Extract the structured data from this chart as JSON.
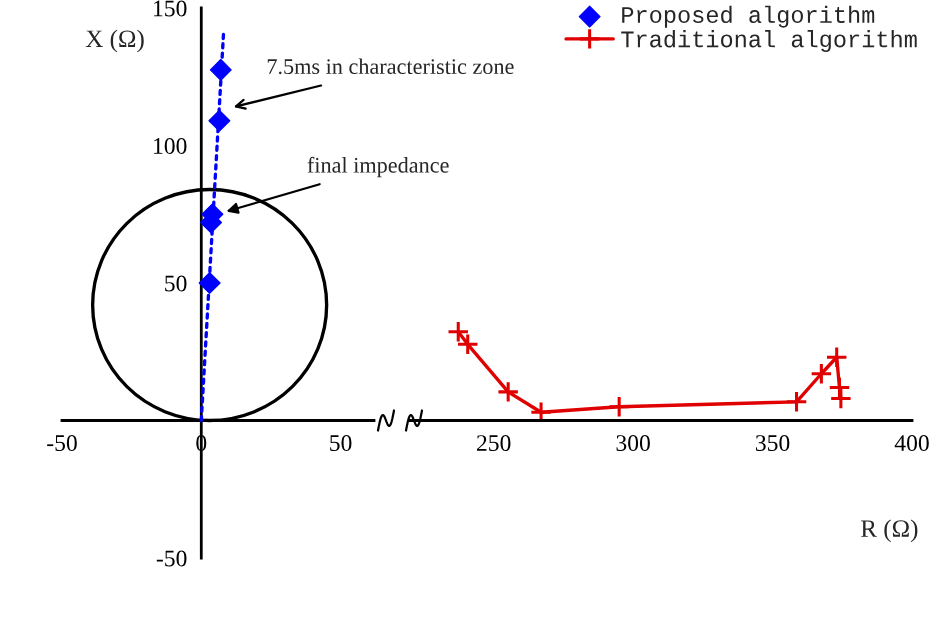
{
  "chart_data": [
    {
      "type": "scatter",
      "ylabel": "X (Ω)",
      "xlim": [
        -50,
        62
      ],
      "ylim": [
        -50,
        150
      ],
      "xticks": [
        -50,
        0,
        50
      ],
      "yticks": [
        -50,
        50,
        100,
        150
      ],
      "tick_labels": "xy",
      "annotations": [
        "7.5ms in characteristic zone",
        {
          "text": "final impedance",
          "x": 9,
          "y": 76
        }
      ],
      "series": [
        {
          "type": "line",
          "color": "#0000ff",
          "marker": "none",
          "line_style": "dotted",
          "x": [
            0,
            8
          ],
          "values": [
            0,
            141
          ]
        },
        {
          "type": "scatter",
          "name": "Proposed algorithm",
          "color": "#0000ff",
          "marker": "diamond",
          "x": [
            3,
            3.5,
            4,
            6.5,
            7
          ],
          "values": [
            50,
            72,
            75,
            109,
            127.5
          ]
        }
      ]
    },
    {
      "type": "line",
      "xlabel": "R (Ω)",
      "xlim": [
        220,
        400
      ],
      "ylim": [
        -50,
        150
      ],
      "xticks": [
        250,
        300,
        350,
        400
      ],
      "tick_labels": "x",
      "legend": "top right",
      "series": [
        {
          "name": "Traditional algorithm",
          "color": "#e00000",
          "marker": "cross",
          "line_style": "solid",
          "x": [
            237.3,
            240.7,
            255.2,
            267,
            295,
            358.6,
            367.5,
            373,
            374,
            374.5
          ],
          "values": [
            32.3,
            27.7,
            10.4,
            3,
            5,
            6.8,
            17,
            23,
            12,
            8
          ]
        }
      ]
    }
  ]
}
